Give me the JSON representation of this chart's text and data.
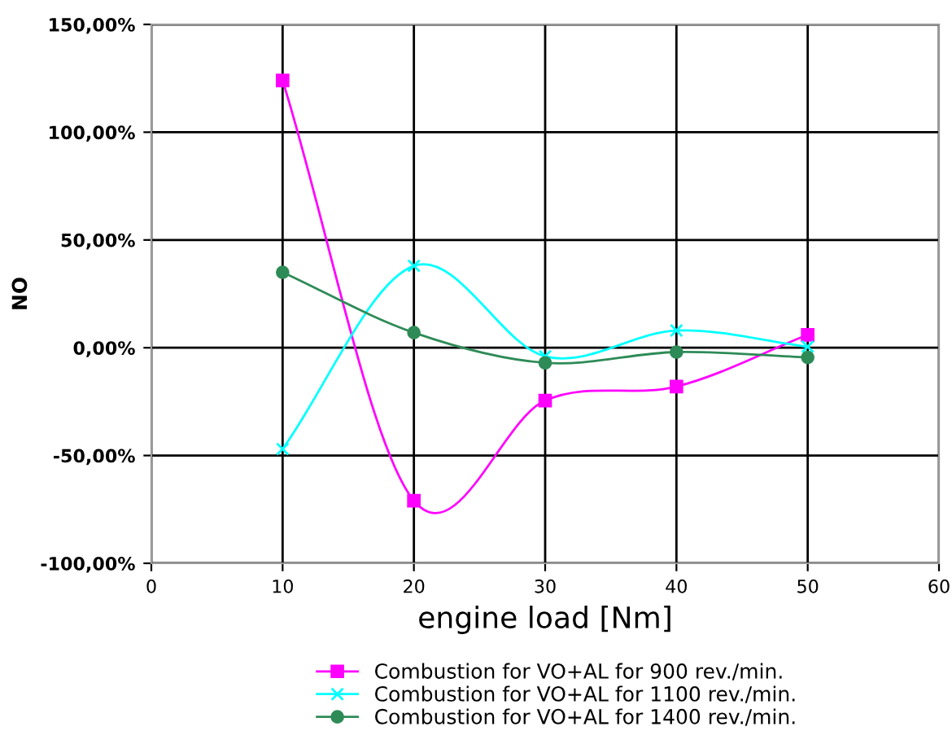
{
  "chart_data": {
    "type": "line",
    "xlabel": "engine load [Nm]",
    "ylabel": "NO",
    "x": [
      10,
      20,
      30,
      40,
      50
    ],
    "series": [
      {
        "name": "Combustion for VO+AL for 900 rev./min.",
        "color": "#ff00ff",
        "marker": "square",
        "values": [
          124,
          -71,
          -24.5,
          -18,
          6
        ]
      },
      {
        "name": "Combustion for VO+AL for 1100 rev./min.",
        "color": "#00ffff",
        "marker": "cross",
        "values": [
          -47,
          38,
          -4,
          8,
          0.5
        ]
      },
      {
        "name": "Combustion for VO+AL for 1400 rev./min.",
        "color": "#2e8b57",
        "marker": "circle",
        "values": [
          35,
          7,
          -7,
          -2,
          -4.5
        ]
      }
    ],
    "xlim": [
      0,
      60
    ],
    "xticks": [
      0,
      10,
      20,
      30,
      40,
      50,
      60
    ],
    "ylim": [
      -100,
      150
    ],
    "yticks": [
      {
        "value": -100,
        "label": "-100,00%"
      },
      {
        "value": -50,
        "label": "-50,00%"
      },
      {
        "value": 0,
        "label": "0,00%"
      },
      {
        "value": 50,
        "label": "50,00%"
      },
      {
        "value": 100,
        "label": "100,00%"
      },
      {
        "value": 150,
        "label": "150,00%"
      }
    ],
    "grid": true,
    "legend": "bottom",
    "line_style": "solid"
  }
}
